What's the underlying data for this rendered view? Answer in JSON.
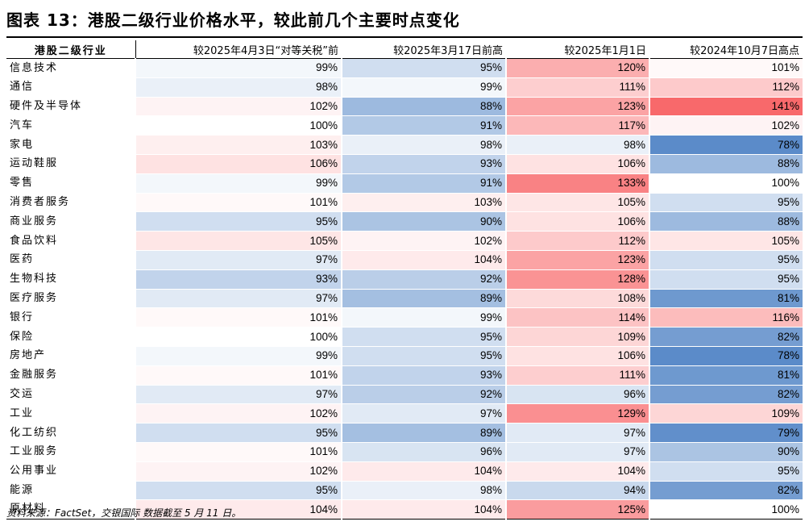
{
  "title": "图表 13：港股二级行业价格水平，较此前几个主要时点变化",
  "source": "资料来源：FactSet，交银国际    数据截至 5 月 11 日。",
  "chart_data": {
    "type": "table",
    "columns": [
      "港股二级行业",
      "较2025年4月3日“对等关税”前",
      "较2025年3月17日前高",
      "较2025年1月1日",
      "较2024年10月7日高点"
    ],
    "rows": [
      {
        "name": "信息技术",
        "values": [
          99,
          95,
          120,
          101
        ]
      },
      {
        "name": "通信",
        "values": [
          98,
          99,
          111,
          112
        ]
      },
      {
        "name": "硬件及半导体",
        "values": [
          102,
          88,
          123,
          141
        ]
      },
      {
        "name": "汽车",
        "values": [
          100,
          91,
          117,
          102
        ]
      },
      {
        "name": "家电",
        "values": [
          103,
          98,
          98,
          78
        ]
      },
      {
        "name": "运动鞋服",
        "values": [
          106,
          93,
          106,
          88
        ]
      },
      {
        "name": "零售",
        "values": [
          99,
          91,
          133,
          100
        ]
      },
      {
        "name": "消费者服务",
        "values": [
          101,
          103,
          105,
          95
        ]
      },
      {
        "name": "商业服务",
        "values": [
          95,
          90,
          106,
          88
        ]
      },
      {
        "name": "食品饮料",
        "values": [
          105,
          102,
          112,
          105
        ]
      },
      {
        "name": "医药",
        "values": [
          97,
          104,
          123,
          95
        ]
      },
      {
        "name": "生物科技",
        "values": [
          93,
          92,
          128,
          95
        ]
      },
      {
        "name": "医疗服务",
        "values": [
          97,
          89,
          108,
          81
        ]
      },
      {
        "name": "银行",
        "values": [
          101,
          99,
          114,
          116
        ]
      },
      {
        "name": "保险",
        "values": [
          100,
          95,
          109,
          82
        ]
      },
      {
        "name": "房地产",
        "values": [
          99,
          95,
          106,
          78
        ]
      },
      {
        "name": "金融服务",
        "values": [
          101,
          93,
          111,
          81
        ]
      },
      {
        "name": "交运",
        "values": [
          97,
          92,
          96,
          82
        ]
      },
      {
        "name": "工业",
        "values": [
          102,
          97,
          129,
          109
        ]
      },
      {
        "name": "化工纺织",
        "values": [
          95,
          89,
          97,
          79
        ]
      },
      {
        "name": "工业服务",
        "values": [
          101,
          96,
          97,
          90
        ]
      },
      {
        "name": "公用事业",
        "values": [
          102,
          104,
          104,
          95
        ]
      },
      {
        "name": "能源",
        "values": [
          95,
          98,
          94,
          82
        ]
      },
      {
        "name": "原材料",
        "values": [
          104,
          104,
          125,
          100
        ]
      }
    ],
    "value_suffix": "%",
    "colors": {
      "low": "#5b8bc9",
      "mid": "#ffffff",
      "high": "#f8696b"
    }
  }
}
